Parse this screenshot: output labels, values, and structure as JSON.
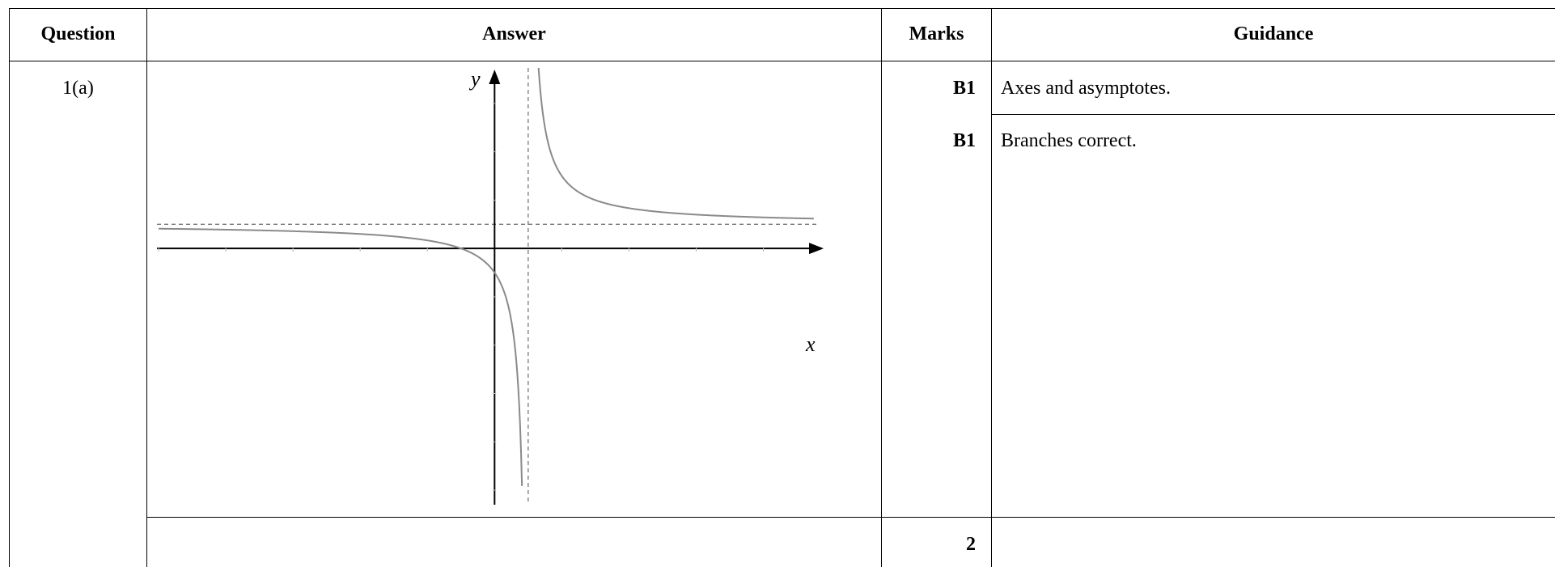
{
  "headers": {
    "question": "Question",
    "answer": "Answer",
    "marks": "Marks",
    "guidance": "Guidance"
  },
  "row": {
    "question": "1(a)",
    "items": [
      {
        "mark": "B1",
        "guidance": "Axes and asymptotes."
      },
      {
        "mark": "B1",
        "guidance": "Branches correct."
      }
    ],
    "total": "2"
  },
  "graph": {
    "x_axis_label": "x",
    "y_axis_label": "y",
    "x_range": [
      -5,
      4.8
    ],
    "y_range": [
      -5.2,
      3.6
    ],
    "vertical_asymptote": 0.5,
    "horizontal_asymptote": 0.5,
    "curve_color": "#8a8a8a",
    "axis_color": "#000000"
  }
}
